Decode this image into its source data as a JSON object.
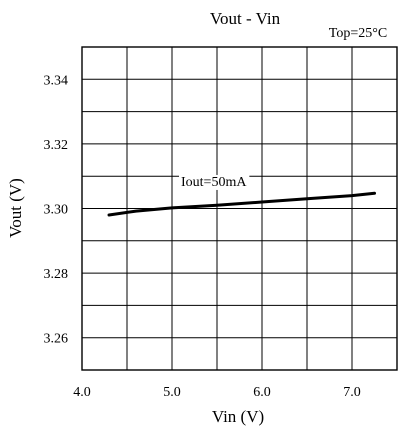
{
  "chart_data": {
    "type": "line",
    "title": "Vout - Vin",
    "condition": "Top=25°C",
    "xlabel": "Vin (V)",
    "ylabel": "Vout (V)",
    "xlim": [
      4.0,
      7.5
    ],
    "ylim": [
      3.25,
      3.35
    ],
    "x_grid_step": 0.5,
    "y_grid_step": 0.01,
    "x_ticks": [
      {
        "value": 4.0,
        "label": "4.0"
      },
      {
        "value": 5.0,
        "label": "5.0"
      },
      {
        "value": 6.0,
        "label": "6.0"
      },
      {
        "value": 7.0,
        "label": "7.0"
      }
    ],
    "y_ticks": [
      {
        "value": 3.26,
        "label": "3.26"
      },
      {
        "value": 3.28,
        "label": "3.28"
      },
      {
        "value": 3.3,
        "label": "3.30"
      },
      {
        "value": 3.32,
        "label": "3.32"
      },
      {
        "value": 3.34,
        "label": "3.34"
      }
    ],
    "grid": true,
    "series": [
      {
        "name": "Iout=50mA",
        "color": "#000000",
        "x": [
          4.3,
          4.6,
          5.0,
          5.5,
          6.0,
          6.5,
          7.0,
          7.25
        ],
        "y": [
          3.298,
          3.2992,
          3.3002,
          3.301,
          3.302,
          3.303,
          3.304,
          3.3047
        ]
      }
    ],
    "annotations": [
      {
        "text": "Iout=50mA",
        "x": 5.1,
        "y": 3.3076
      }
    ]
  }
}
